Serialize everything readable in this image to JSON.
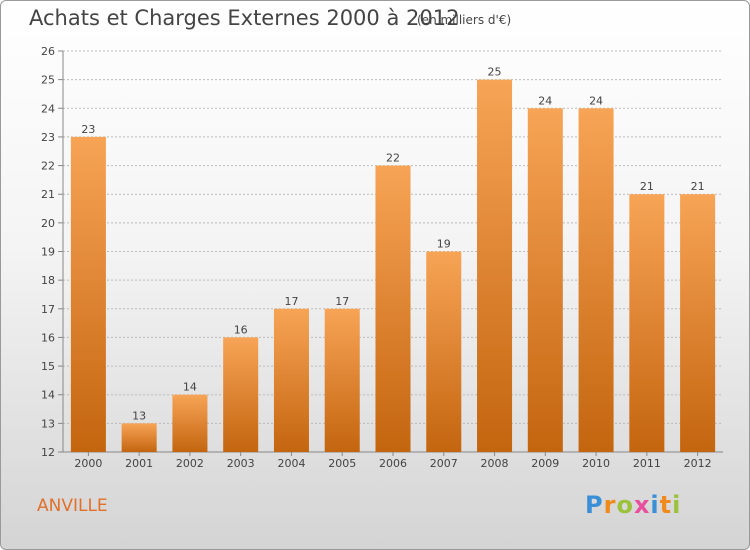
{
  "title": "Achats et Charges Externes 2000 à 2012",
  "subtitle": "(en milliers d'€)",
  "commune": "ANVILLE",
  "logo": "Proxiti",
  "colors": {
    "bar_light": "#f7a456",
    "bar_dark": "#c4650f",
    "title": "#444444",
    "commune": "#e0702a"
  },
  "chart_data": {
    "type": "bar",
    "title": "Achats et Charges Externes 2000 à 2012",
    "subtitle": "(en milliers d'€)",
    "categories": [
      "2000",
      "2001",
      "2002",
      "2003",
      "2004",
      "2005",
      "2006",
      "2007",
      "2008",
      "2009",
      "2010",
      "2011",
      "2012"
    ],
    "values": [
      23,
      13,
      14,
      16,
      17,
      17,
      22,
      19,
      25,
      24,
      24,
      21,
      21
    ],
    "ylim": [
      12,
      26
    ],
    "yticks": [
      12,
      13,
      14,
      15,
      16,
      17,
      18,
      19,
      20,
      21,
      22,
      23,
      24,
      25,
      26
    ],
    "ytick_labels": [
      "12",
      "13",
      "14",
      "15",
      "16",
      "17",
      "18",
      "19",
      "20",
      "21",
      "22",
      "23",
      "24",
      "25",
      "26"
    ],
    "xlabel": "",
    "ylabel": "",
    "grid": true
  }
}
